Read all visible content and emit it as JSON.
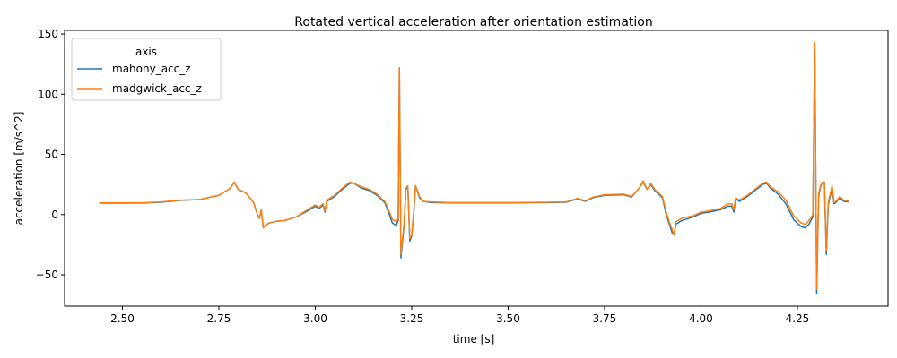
{
  "chart_data": {
    "type": "line",
    "title": "Rotated vertical acceleration after orientation estimation",
    "xlabel": "time [s]",
    "ylabel": "acceleration [m/s^2]",
    "xlim": [
      2.35,
      4.485
    ],
    "ylim": [
      -76,
      153
    ],
    "xticks": [
      2.5,
      2.75,
      3.0,
      3.25,
      3.5,
      3.75,
      4.0,
      4.25
    ],
    "xtick_labels": [
      "2.50",
      "2.75",
      "3.00",
      "3.25",
      "3.50",
      "3.75",
      "4.00",
      "4.25"
    ],
    "yticks": [
      -50,
      0,
      50,
      100,
      150
    ],
    "ytick_labels": [
      "−50",
      "0",
      "50",
      "100",
      "150"
    ],
    "grid": false,
    "legend": {
      "title": "axis",
      "placement": "top-left"
    },
    "series": [
      {
        "name": "mahony_acc_z",
        "color": "#1f77b4",
        "points": [
          [
            2.44,
            9.5
          ],
          [
            2.5,
            9.5
          ],
          [
            2.55,
            9.6
          ],
          [
            2.6,
            10.2
          ],
          [
            2.65,
            11.8
          ],
          [
            2.7,
            12.5
          ],
          [
            2.75,
            16
          ],
          [
            2.78,
            22
          ],
          [
            2.79,
            27
          ],
          [
            2.8,
            21
          ],
          [
            2.82,
            18
          ],
          [
            2.84,
            10
          ],
          [
            2.85,
            0
          ],
          [
            2.855,
            -3
          ],
          [
            2.86,
            4
          ],
          [
            2.865,
            -11
          ],
          [
            2.87,
            -9
          ],
          [
            2.88,
            -7
          ],
          [
            2.9,
            -5.5
          ],
          [
            2.92,
            -5
          ],
          [
            2.95,
            -2
          ],
          [
            2.98,
            3
          ],
          [
            3.0,
            7
          ],
          [
            3.01,
            5
          ],
          [
            3.02,
            8
          ],
          [
            3.025,
            2
          ],
          [
            3.03,
            11
          ],
          [
            3.05,
            15
          ],
          [
            3.07,
            21
          ],
          [
            3.09,
            26
          ],
          [
            3.1,
            26
          ],
          [
            3.12,
            22
          ],
          [
            3.14,
            20
          ],
          [
            3.16,
            16
          ],
          [
            3.18,
            10
          ],
          [
            3.19,
            2
          ],
          [
            3.2,
            -7
          ],
          [
            3.21,
            -9
          ],
          [
            3.215,
            -5
          ],
          [
            3.218,
            122
          ],
          [
            3.222,
            -36
          ],
          [
            3.23,
            -10
          ],
          [
            3.235,
            21
          ],
          [
            3.24,
            23
          ],
          [
            3.245,
            -22
          ],
          [
            3.25,
            -18
          ],
          [
            3.255,
            0
          ],
          [
            3.26,
            24
          ],
          [
            3.27,
            14
          ],
          [
            3.28,
            11
          ],
          [
            3.3,
            10
          ],
          [
            3.35,
            9.8
          ],
          [
            3.4,
            9.8
          ],
          [
            3.5,
            9.8
          ],
          [
            3.6,
            10
          ],
          [
            3.65,
            10.2
          ],
          [
            3.68,
            13
          ],
          [
            3.7,
            11
          ],
          [
            3.72,
            14
          ],
          [
            3.75,
            16
          ],
          [
            3.8,
            16.5
          ],
          [
            3.82,
            14.5
          ],
          [
            3.84,
            22
          ],
          [
            3.85,
            27
          ],
          [
            3.86,
            21
          ],
          [
            3.87,
            25
          ],
          [
            3.88,
            20
          ],
          [
            3.9,
            14
          ],
          [
            3.91,
            0
          ],
          [
            3.92,
            -10
          ],
          [
            3.925,
            -15
          ],
          [
            3.93,
            -17
          ],
          [
            3.935,
            -8
          ],
          [
            3.95,
            -5
          ],
          [
            3.98,
            -2
          ],
          [
            4.0,
            1
          ],
          [
            4.02,
            2
          ],
          [
            4.05,
            4
          ],
          [
            4.07,
            7
          ],
          [
            4.08,
            7
          ],
          [
            4.085,
            2
          ],
          [
            4.09,
            13
          ],
          [
            4.1,
            11
          ],
          [
            4.12,
            15
          ],
          [
            4.14,
            20
          ],
          [
            4.16,
            25
          ],
          [
            4.17,
            26
          ],
          [
            4.18,
            22
          ],
          [
            4.2,
            17
          ],
          [
            4.22,
            9
          ],
          [
            4.24,
            -4
          ],
          [
            4.26,
            -10
          ],
          [
            4.27,
            -11
          ],
          [
            4.28,
            -8
          ],
          [
            4.29,
            -2
          ],
          [
            4.295,
            141
          ],
          [
            4.3,
            -66
          ],
          [
            4.305,
            15
          ],
          [
            4.31,
            23
          ],
          [
            4.315,
            27
          ],
          [
            4.32,
            26
          ],
          [
            4.325,
            -33
          ],
          [
            4.33,
            8
          ],
          [
            4.34,
            22
          ],
          [
            4.345,
            9
          ],
          [
            4.35,
            10
          ],
          [
            4.36,
            14
          ],
          [
            4.37,
            11
          ],
          [
            4.385,
            10.5
          ]
        ]
      },
      {
        "name": "madgwick_acc_z",
        "color": "#ff7f0e",
        "points": [
          [
            2.44,
            9.8
          ],
          [
            2.5,
            9.8
          ],
          [
            2.55,
            9.8
          ],
          [
            2.6,
            10.5
          ],
          [
            2.65,
            12
          ],
          [
            2.7,
            12.5
          ],
          [
            2.75,
            16
          ],
          [
            2.78,
            22
          ],
          [
            2.79,
            27
          ],
          [
            2.8,
            21
          ],
          [
            2.82,
            18
          ],
          [
            2.84,
            10
          ],
          [
            2.85,
            0
          ],
          [
            2.855,
            -3
          ],
          [
            2.86,
            4
          ],
          [
            2.865,
            -11
          ],
          [
            2.87,
            -9
          ],
          [
            2.88,
            -7
          ],
          [
            2.9,
            -5.5
          ],
          [
            2.92,
            -5
          ],
          [
            2.95,
            -2
          ],
          [
            2.98,
            4
          ],
          [
            3.0,
            8
          ],
          [
            3.01,
            6
          ],
          [
            3.02,
            9
          ],
          [
            3.025,
            3
          ],
          [
            3.03,
            12
          ],
          [
            3.05,
            16
          ],
          [
            3.07,
            22
          ],
          [
            3.09,
            27
          ],
          [
            3.1,
            26
          ],
          [
            3.12,
            23
          ],
          [
            3.14,
            21
          ],
          [
            3.16,
            17
          ],
          [
            3.18,
            11
          ],
          [
            3.19,
            4
          ],
          [
            3.2,
            -4
          ],
          [
            3.21,
            -6
          ],
          [
            3.215,
            -3
          ],
          [
            3.218,
            122
          ],
          [
            3.222,
            -33
          ],
          [
            3.23,
            -8
          ],
          [
            3.235,
            22
          ],
          [
            3.24,
            24
          ],
          [
            3.245,
            -20
          ],
          [
            3.25,
            -17
          ],
          [
            3.255,
            2
          ],
          [
            3.26,
            24
          ],
          [
            3.27,
            15
          ],
          [
            3.28,
            11
          ],
          [
            3.3,
            10.5
          ],
          [
            3.35,
            10
          ],
          [
            3.4,
            10
          ],
          [
            3.5,
            10
          ],
          [
            3.6,
            10.2
          ],
          [
            3.65,
            10.5
          ],
          [
            3.68,
            13.5
          ],
          [
            3.7,
            11.5
          ],
          [
            3.72,
            14.5
          ],
          [
            3.75,
            16.5
          ],
          [
            3.8,
            17
          ],
          [
            3.82,
            15
          ],
          [
            3.84,
            22
          ],
          [
            3.85,
            28
          ],
          [
            3.86,
            21
          ],
          [
            3.87,
            26
          ],
          [
            3.88,
            21
          ],
          [
            3.9,
            15
          ],
          [
            3.91,
            2
          ],
          [
            3.92,
            -8
          ],
          [
            3.925,
            -12
          ],
          [
            3.93,
            -17
          ],
          [
            3.935,
            -6
          ],
          [
            3.95,
            -3
          ],
          [
            3.98,
            -1
          ],
          [
            4.0,
            2
          ],
          [
            4.02,
            3
          ],
          [
            4.05,
            5
          ],
          [
            4.07,
            9
          ],
          [
            4.08,
            9
          ],
          [
            4.085,
            4
          ],
          [
            4.09,
            14
          ],
          [
            4.1,
            12
          ],
          [
            4.12,
            16
          ],
          [
            4.14,
            21
          ],
          [
            4.16,
            26
          ],
          [
            4.17,
            27
          ],
          [
            4.18,
            23
          ],
          [
            4.2,
            19
          ],
          [
            4.22,
            12
          ],
          [
            4.24,
            -1
          ],
          [
            4.26,
            -7
          ],
          [
            4.27,
            -8
          ],
          [
            4.28,
            -5
          ],
          [
            4.29,
            0
          ],
          [
            4.295,
            143
          ],
          [
            4.3,
            -62
          ],
          [
            4.305,
            17
          ],
          [
            4.31,
            24
          ],
          [
            4.315,
            27
          ],
          [
            4.32,
            27
          ],
          [
            4.325,
            -30
          ],
          [
            4.33,
            10
          ],
          [
            4.34,
            24
          ],
          [
            4.345,
            10
          ],
          [
            4.35,
            11
          ],
          [
            4.36,
            15
          ],
          [
            4.37,
            12
          ],
          [
            4.385,
            11
          ]
        ]
      }
    ]
  }
}
